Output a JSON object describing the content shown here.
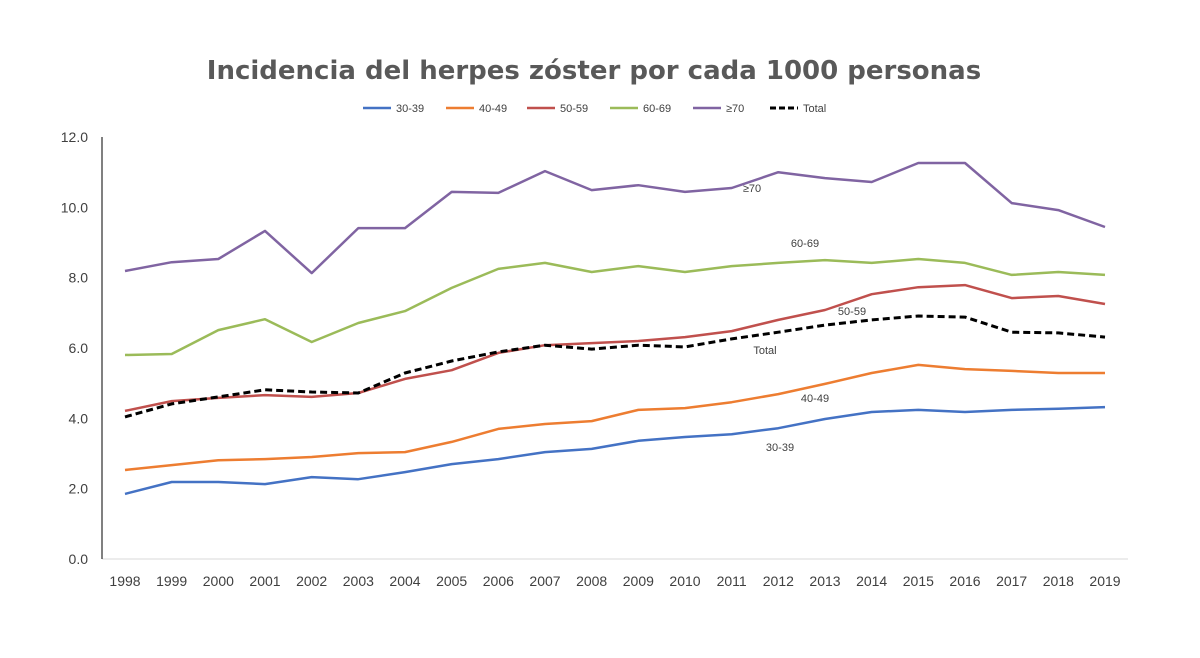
{
  "chart_data": {
    "type": "line",
    "title": "Incidencia del herpes zóster por cada 1000 personas",
    "xlabel": "",
    "ylabel": "",
    "ylim": [
      0,
      12
    ],
    "yticks": [
      "0.0",
      "2.0",
      "4.0",
      "6.0",
      "8.0",
      "10.0",
      "12.0"
    ],
    "grid": false,
    "legend_position": "top",
    "x": [
      1998,
      1999,
      2000,
      2001,
      2002,
      2003,
      2004,
      2005,
      2006,
      2007,
      2008,
      2009,
      2010,
      2011,
      2012,
      2013,
      2014,
      2015,
      2016,
      2017,
      2018,
      2019
    ],
    "series": [
      {
        "name": "30-39",
        "color": "#4472C4",
        "dashed": false,
        "values": [
          1.85,
          2.19,
          2.19,
          2.13,
          2.33,
          2.27,
          2.47,
          2.7,
          2.84,
          3.04,
          3.13,
          3.36,
          3.47,
          3.55,
          3.72,
          3.98,
          4.18,
          4.24,
          4.18,
          4.24,
          4.27,
          4.32
        ]
      },
      {
        "name": "40-49",
        "color": "#ED7D31",
        "dashed": false,
        "values": [
          2.53,
          2.67,
          2.81,
          2.84,
          2.9,
          3.01,
          3.04,
          3.33,
          3.7,
          3.84,
          3.92,
          4.24,
          4.29,
          4.46,
          4.69,
          4.98,
          5.29,
          5.52,
          5.4,
          5.35,
          5.29,
          5.29
        ]
      },
      {
        "name": "50-59",
        "color": "#C0504D",
        "dashed": false,
        "values": [
          4.21,
          4.49,
          4.58,
          4.66,
          4.61,
          4.72,
          5.12,
          5.37,
          5.86,
          6.08,
          6.14,
          6.2,
          6.31,
          6.48,
          6.8,
          7.08,
          7.53,
          7.73,
          7.79,
          7.42,
          7.48,
          7.25
        ]
      },
      {
        "name": "60-69",
        "color": "#9BBB59",
        "dashed": false,
        "values": [
          5.8,
          5.83,
          6.51,
          6.82,
          6.17,
          6.71,
          7.05,
          7.71,
          8.25,
          8.42,
          8.16,
          8.33,
          8.16,
          8.33,
          8.42,
          8.5,
          8.42,
          8.53,
          8.42,
          8.08,
          8.16,
          8.08
        ]
      },
      {
        "name": "≥70",
        "color": "#8064A2",
        "dashed": false,
        "values": [
          8.19,
          8.44,
          8.53,
          9.33,
          8.13,
          9.41,
          9.41,
          10.44,
          10.41,
          11.03,
          10.49,
          10.63,
          10.44,
          10.55,
          11.0,
          10.83,
          10.72,
          11.26,
          11.26,
          10.12,
          9.92,
          9.44
        ]
      },
      {
        "name": "Total",
        "color": "#000000",
        "dashed": true,
        "values": [
          4.04,
          4.41,
          4.61,
          4.81,
          4.75,
          4.72,
          5.29,
          5.63,
          5.89,
          6.08,
          5.97,
          6.08,
          6.03,
          6.26,
          6.45,
          6.65,
          6.8,
          6.91,
          6.88,
          6.45,
          6.43,
          6.31
        ]
      }
    ],
    "annotations": [
      "30-39",
      "40-49",
      "50-59",
      "60-69",
      "≥70",
      "Total"
    ]
  }
}
